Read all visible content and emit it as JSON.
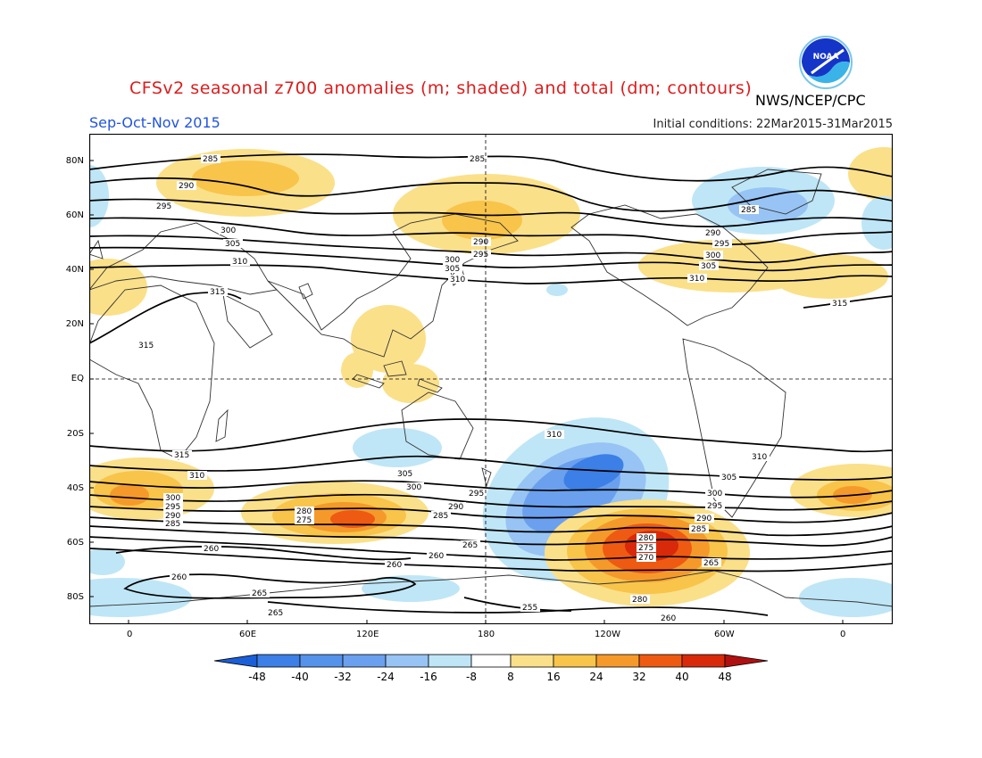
{
  "header": {
    "title": "CFSv2 seasonal z700 anomalies (m; shaded) and total (dm; contours)",
    "agency": "NWS/NCEP/CPC",
    "season": "Sep-Oct-Nov 2015",
    "initial_conditions": "Initial conditions: 22Mar2015-31Mar2015"
  },
  "logo": {
    "text": "NOAA",
    "icon": "noaa-logo-icon"
  },
  "colors": {
    "title": "#dd1c1c",
    "season": "#2255dd",
    "neg48": "#1a5fd8",
    "neg40": "#3c7fe6",
    "neg32": "#6aa0ee",
    "neg24": "#97c4f4",
    "neg16": "#bfe6f6",
    "pos8": "#fbe08a",
    "pos16": "#f8c44a",
    "pos24": "#f59a2a",
    "pos32": "#ef5a12",
    "pos40": "#d82a0a",
    "pos48": "#b01010"
  },
  "map": {
    "lat_labels": [
      "80N",
      "60N",
      "40N",
      "20N",
      "EQ",
      "20S",
      "40S",
      "60S",
      "80S"
    ],
    "lon_labels": [
      "0",
      "60E",
      "120E",
      "180",
      "120W",
      "60W",
      "0"
    ],
    "contour_labels": [
      "285",
      "290",
      "295",
      "300",
      "305",
      "310",
      "315",
      "260",
      "265",
      "270",
      "275",
      "280",
      "255"
    ]
  },
  "colorbar": {
    "ticks": [
      "-48",
      "-40",
      "-32",
      "-24",
      "-16",
      "-8",
      "8",
      "16",
      "24",
      "32",
      "40",
      "48"
    ]
  }
}
